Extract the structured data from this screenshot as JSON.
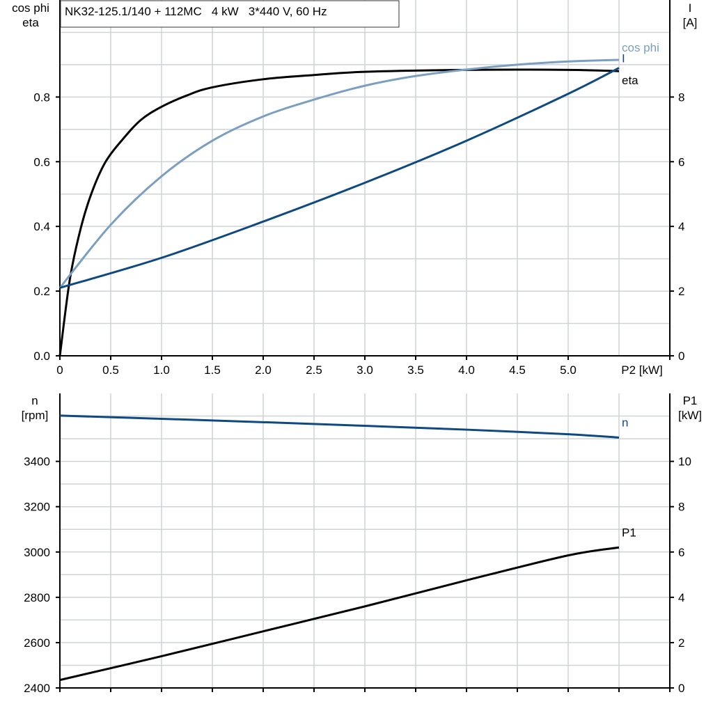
{
  "chart_data": [
    {
      "type": "line",
      "title": "NK32-125.1/140 + 112MC   4 kW   3*440 V, 60 Hz",
      "xlabel": "P2 [kW]",
      "ylabel_left": [
        "cos phi",
        "eta"
      ],
      "ylabel_right": [
        "I",
        "[A]"
      ],
      "xlim": [
        0,
        6
      ],
      "ylim_left": [
        0,
        1.1
      ],
      "ylim_right": [
        0,
        11
      ],
      "x_ticks": [
        "0",
        "0.5",
        "1.0",
        "1.5",
        "2.0",
        "2.5",
        "3.0",
        "3.5",
        "4.0",
        "4.5",
        "5.0"
      ],
      "y_ticks_left": [
        "0.0",
        "0.2",
        "0.4",
        "0.6",
        "0.8"
      ],
      "y_ticks_right": [
        "0",
        "2",
        "4",
        "6",
        "8"
      ],
      "grid": true,
      "series": [
        {
          "name": "eta",
          "axis": "left",
          "color": "#000000",
          "x": [
            0,
            0.1,
            0.21,
            0.32,
            0.45,
            0.62,
            0.8,
            1.0,
            1.25,
            1.5,
            2.0,
            2.5,
            3.0,
            4.0,
            5.0,
            5.5
          ],
          "y": [
            0,
            0.24,
            0.4,
            0.51,
            0.6,
            0.67,
            0.73,
            0.77,
            0.805,
            0.83,
            0.855,
            0.868,
            0.878,
            0.884,
            0.884,
            0.88
          ]
        },
        {
          "name": "cos phi",
          "axis": "left",
          "color": "#7a9fc0",
          "x": [
            0,
            0.5,
            1.0,
            1.5,
            2.0,
            2.5,
            3.0,
            3.5,
            4.0,
            4.5,
            5.0,
            5.5
          ],
          "y": [
            0.21,
            0.405,
            0.555,
            0.665,
            0.74,
            0.792,
            0.835,
            0.865,
            0.885,
            0.9,
            0.91,
            0.915
          ]
        },
        {
          "name": "I",
          "axis": "right",
          "color": "#0e4a80",
          "x": [
            0,
            1.0,
            2.0,
            3.0,
            4.0,
            5.0,
            5.5
          ],
          "y": [
            2.1,
            3.03,
            4.15,
            5.35,
            6.65,
            8.1,
            8.9
          ]
        }
      ]
    },
    {
      "type": "line",
      "xlim": [
        0,
        6
      ],
      "ylabel_left": [
        "n",
        "[rpm]"
      ],
      "ylabel_right": [
        "P1",
        "[kW]"
      ],
      "ylim_left": [
        2400,
        3700
      ],
      "ylim_right": [
        0,
        13
      ],
      "y_ticks_left": [
        "2400",
        "2600",
        "2800",
        "3000",
        "3200",
        "3400"
      ],
      "y_ticks_right": [
        "0",
        "2",
        "4",
        "6",
        "8",
        "10"
      ],
      "grid": true,
      "series": [
        {
          "name": "n",
          "axis": "left",
          "color": "#0e4a80",
          "x": [
            0,
            1,
            2,
            3,
            4,
            5,
            5.5
          ],
          "y": [
            3602,
            3588,
            3573,
            3557,
            3540,
            3520,
            3505
          ]
        },
        {
          "name": "P1",
          "axis": "right",
          "color": "#000000",
          "x": [
            0,
            1,
            2,
            3,
            4,
            5,
            5.5
          ],
          "y": [
            0.35,
            1.4,
            2.5,
            3.6,
            4.75,
            5.85,
            6.2
          ]
        }
      ]
    }
  ]
}
